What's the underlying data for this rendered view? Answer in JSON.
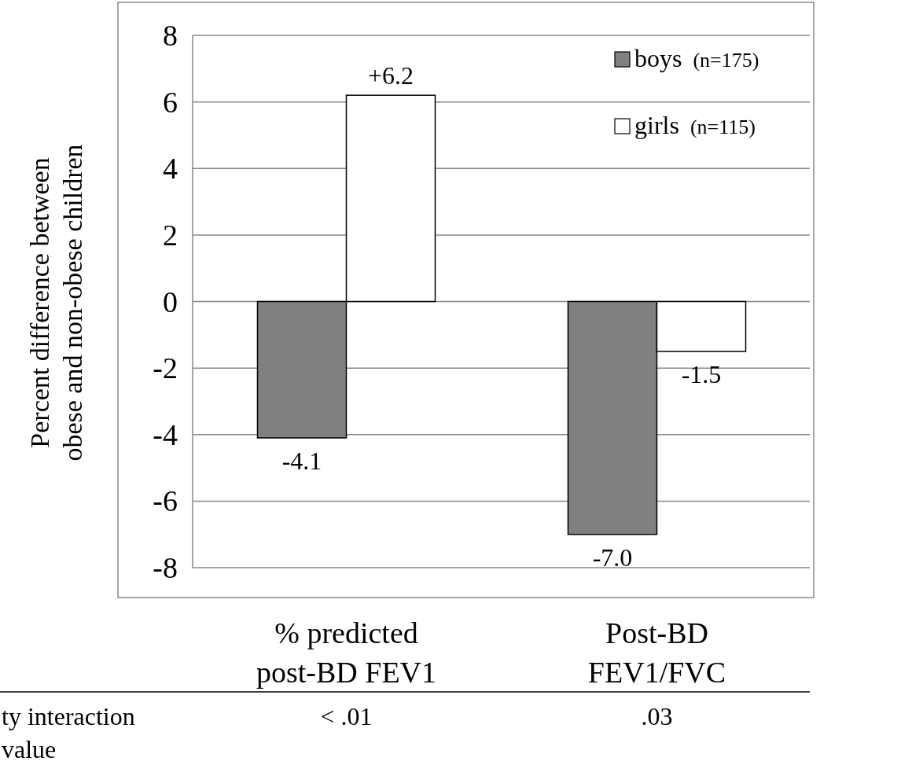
{
  "chart_data": {
    "type": "bar",
    "ylabel": "Percent difference between\nobese and non-obese children",
    "categories": [
      "% predicted\npost-BD FEV1",
      "Post-BD\nFEV1/FVC"
    ],
    "series": [
      {
        "name": "boys (n=175)",
        "color": "#808080",
        "values": [
          -4.1,
          -7.0
        ],
        "value_labels": [
          "-4.1",
          "-7.0"
        ]
      },
      {
        "name": "girls (n=115)",
        "color": "#ffffff",
        "values": [
          6.2,
          -1.5
        ],
        "value_labels": [
          "+6.2",
          "-1.5"
        ]
      }
    ],
    "ylim": [
      -8,
      8
    ],
    "yticks": [
      -8,
      -6,
      -4,
      -2,
      0,
      2,
      4,
      6,
      8
    ],
    "grid": "y",
    "legend": "top right",
    "annotations": [
      "ty interaction",
      "value",
      "< .01",
      ".03"
    ]
  }
}
